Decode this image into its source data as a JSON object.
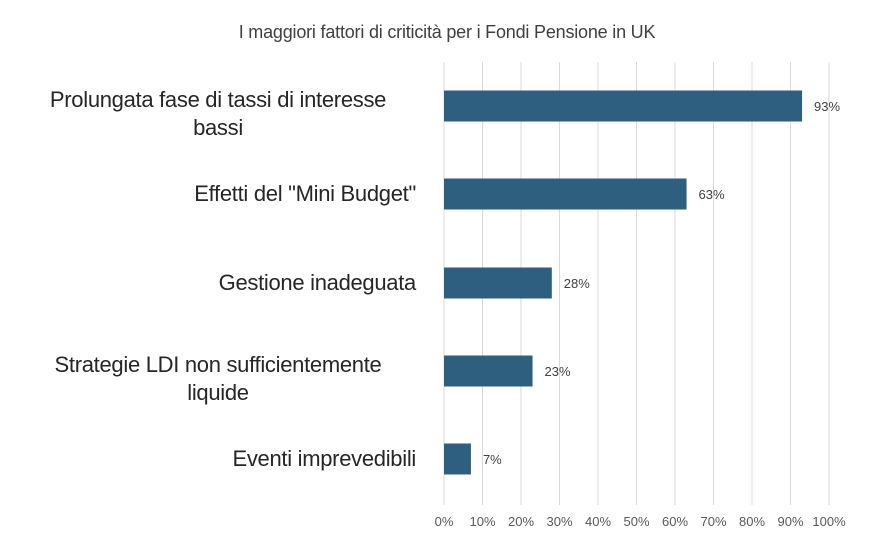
{
  "chart_data": {
    "type": "bar",
    "orientation": "horizontal",
    "title": "I maggiori fattori di criticità per i Fondi Pensione in UK",
    "categories": [
      "Prolungata fase di tassi di interesse bassi",
      "Effetti del \"Mini Budget\"",
      "Gestione inadeguata",
      "Strategie LDI non sufficientemente liquide",
      "Eventi imprevedibili"
    ],
    "category_lines": [
      [
        "Prolungata fase di tassi di interesse",
        "bassi"
      ],
      [
        "Effetti del \"Mini Budget\""
      ],
      [
        "Gestione inadeguata"
      ],
      [
        "Strategie LDI non sufficientemente",
        "liquide"
      ],
      [
        "Eventi imprevedibili"
      ]
    ],
    "values": [
      93,
      63,
      28,
      23,
      7
    ],
    "value_labels": [
      "93%",
      "63%",
      "28%",
      "23%",
      "7%"
    ],
    "xlim": [
      0,
      100
    ],
    "x_ticks": [
      "0%",
      "10%",
      "20%",
      "30%",
      "40%",
      "50%",
      "60%",
      "70%",
      "80%",
      "90%",
      "100%"
    ],
    "grid": true,
    "bar_color": "#2e5f7f",
    "grid_color": "#d9d9d9"
  }
}
